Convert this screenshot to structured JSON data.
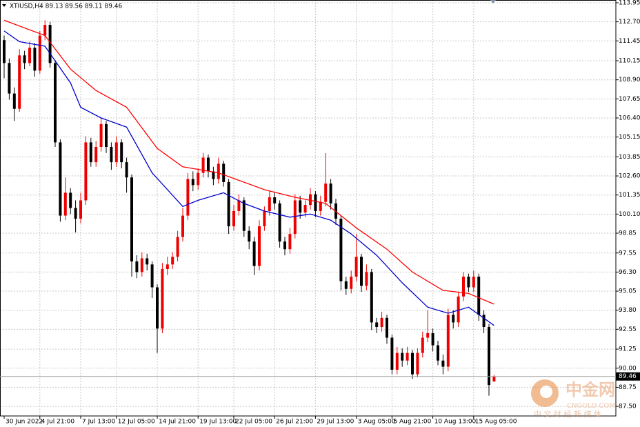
{
  "chart_data": {
    "type": "candlestick",
    "title": "XTIUSD,H4 89.13 89.56 89.11 89.46",
    "categories": [
      "30 Jun 2022",
      null,
      null,
      null,
      null,
      null,
      null,
      "4 Jul 21:00",
      null,
      null,
      null,
      null,
      null,
      null,
      null,
      "7 Jul 13:00",
      null,
      null,
      null,
      null,
      null,
      null,
      "12 Jul 05:00",
      null,
      null,
      null,
      null,
      null,
      null,
      null,
      "14 Jul 21:00",
      null,
      null,
      null,
      null,
      null,
      null,
      null,
      "19 Jul 13:00",
      null,
      null,
      null,
      null,
      null,
      null,
      "22 Jul 05:00",
      null,
      null,
      null,
      null,
      null,
      null,
      null,
      "26 Jul 21:00",
      null,
      null,
      null,
      null,
      null,
      null,
      null,
      "29 Jul 13:00",
      null,
      null,
      null,
      null,
      null,
      null,
      null,
      "3 Aug 05:00",
      null,
      null,
      null,
      null,
      null,
      null,
      "5 Aug 21:00",
      null,
      null,
      null,
      null,
      null,
      null,
      null,
      "10 Aug 13:00",
      null,
      null,
      null,
      null,
      null,
      null,
      null,
      "15 Aug 05:00",
      null,
      null,
      null,
      null
    ],
    "open": [
      111.5,
      110.0,
      108.0,
      107.0,
      110.5,
      110.0,
      111.0,
      109.5,
      111.8,
      112.5,
      110.0,
      104.8,
      100.0,
      101.5,
      100.5,
      99.8,
      101.0,
      104.8,
      103.5,
      104.5,
      106.0,
      104.5,
      103.5,
      104.8,
      103.5,
      102.5,
      97.0,
      96.3,
      97.2,
      96.8,
      95.3,
      92.6,
      96.5,
      96.8,
      97.3,
      98.6,
      100.0,
      102.4,
      102.0,
      102.8,
      103.8,
      102.9,
      102.4,
      103.4,
      102.2,
      99.3,
      100.3,
      101.0,
      99.0,
      98.3,
      96.7,
      99.3,
      100.3,
      101.2,
      100.8,
      98.3,
      97.8,
      98.8,
      101.0,
      100.2,
      100.7,
      101.4,
      100.3,
      100.9,
      102.1,
      100.8,
      99.8,
      95.7,
      95.2,
      96.0,
      97.3,
      95.4,
      96.3,
      93.0,
      92.7,
      93.3,
      92.0,
      89.9,
      91.0,
      90.5,
      91.0,
      89.6,
      91.0,
      92.0,
      92.3,
      91.5,
      90.5,
      90.1,
      93.5,
      93.0,
      94.7,
      96.0,
      95.3,
      96.0,
      93.5,
      92.7,
      89.13
    ],
    "high": [
      111.8,
      110.3,
      108.4,
      110.9,
      110.8,
      111.4,
      111.3,
      112.1,
      112.8,
      112.7,
      110.2,
      105.0,
      102.5,
      101.8,
      101.0,
      101.5,
      105.2,
      105.1,
      104.9,
      106.4,
      106.2,
      104.8,
      105.2,
      105.0,
      103.8,
      102.7,
      97.4,
      97.6,
      97.5,
      97.0,
      95.5,
      96.9,
      97.3,
      97.6,
      99.0,
      100.5,
      102.8,
      102.9,
      103.1,
      104.1,
      104.0,
      103.2,
      103.8,
      103.6,
      102.4,
      100.7,
      101.4,
      101.2,
      99.3,
      98.6,
      99.7,
      100.6,
      101.6,
      101.5,
      101.0,
      98.6,
      99.2,
      101.4,
      101.3,
      101.0,
      101.8,
      101.6,
      101.3,
      104.1,
      102.4,
      101.1,
      100.0,
      96.0,
      96.4,
      98.8,
      97.5,
      96.8,
      96.5,
      93.3,
      93.7,
      93.5,
      92.2,
      91.4,
      91.3,
      91.4,
      91.2,
      91.3,
      92.4,
      93.8,
      92.6,
      91.8,
      90.9,
      93.9,
      93.8,
      95.0,
      96.3,
      96.2,
      96.4,
      96.2,
      93.8,
      92.9,
      89.56
    ],
    "low": [
      109.0,
      107.6,
      106.2,
      106.8,
      109.6,
      109.8,
      109.1,
      109.3,
      111.5,
      109.7,
      104.5,
      99.6,
      99.7,
      100.1,
      98.9,
      99.5,
      100.7,
      103.2,
      103.2,
      104.2,
      104.1,
      103.0,
      103.2,
      103.1,
      101.5,
      96.0,
      95.9,
      96.0,
      96.4,
      94.6,
      91.0,
      92.3,
      96.1,
      96.5,
      97.0,
      98.3,
      99.7,
      101.6,
      101.7,
      102.5,
      102.5,
      102.0,
      102.1,
      101.9,
      98.8,
      99.0,
      100.0,
      98.6,
      97.8,
      96.1,
      96.4,
      99.0,
      100.0,
      100.4,
      97.9,
      97.4,
      97.5,
      98.5,
      99.8,
      99.9,
      100.4,
      99.9,
      100.0,
      100.6,
      100.4,
      99.4,
      95.1,
      94.8,
      94.9,
      95.7,
      95.0,
      95.1,
      92.5,
      92.3,
      92.4,
      91.6,
      89.6,
      89.6,
      90.1,
      90.2,
      89.3,
      89.4,
      90.7,
      91.7,
      91.1,
      90.2,
      89.6,
      89.8,
      92.6,
      92.7,
      94.4,
      95.0,
      95.0,
      93.1,
      92.3,
      88.2,
      89.11
    ],
    "close": [
      110.0,
      108.0,
      107.0,
      110.5,
      110.0,
      111.0,
      109.5,
      111.8,
      112.5,
      110.0,
      104.8,
      100.0,
      101.5,
      100.5,
      99.8,
      101.0,
      104.8,
      103.5,
      104.5,
      106.0,
      104.5,
      103.5,
      104.8,
      103.5,
      102.5,
      97.0,
      96.3,
      97.2,
      96.8,
      95.3,
      92.6,
      96.5,
      96.8,
      97.3,
      98.6,
      100.0,
      102.4,
      102.0,
      102.8,
      103.8,
      102.9,
      102.4,
      103.4,
      102.2,
      99.3,
      100.3,
      101.0,
      99.0,
      98.3,
      96.7,
      99.3,
      100.3,
      101.2,
      100.8,
      98.3,
      97.8,
      98.8,
      101.0,
      100.2,
      100.7,
      101.4,
      100.3,
      100.9,
      102.1,
      100.8,
      99.8,
      95.7,
      95.2,
      96.0,
      97.3,
      95.4,
      96.3,
      93.0,
      92.7,
      93.3,
      92.0,
      89.9,
      91.0,
      90.5,
      91.0,
      89.6,
      91.0,
      92.0,
      92.3,
      91.5,
      90.5,
      90.1,
      93.5,
      93.0,
      94.7,
      96.0,
      95.3,
      96.0,
      93.5,
      92.7,
      88.9,
      89.46
    ],
    "up_color": "#ee0000",
    "down_color": "#000000",
    "ma_lines": [
      {
        "color": "#ff0000",
        "x": [
          0,
          8,
          13,
          18,
          24,
          30,
          35,
          42,
          51,
          57,
          63,
          69,
          75,
          80,
          86,
          91,
          96
        ],
        "values": [
          112.8,
          111.8,
          109.6,
          108.2,
          107.1,
          104.4,
          103.2,
          102.8,
          101.7,
          101.2,
          100.8,
          99.2,
          97.8,
          96.3,
          95.1,
          94.9,
          94.2
        ]
      },
      {
        "color": "#0000cc",
        "x": [
          0,
          3,
          8,
          13,
          15,
          19,
          24,
          29,
          35,
          38,
          43,
          47,
          51,
          56,
          60,
          64,
          68,
          73,
          78,
          83,
          87,
          91,
          96
        ],
        "values": [
          112.1,
          111.4,
          111.1,
          108.7,
          107.1,
          106.4,
          105.8,
          102.8,
          100.6,
          101.0,
          101.5,
          100.8,
          100.3,
          99.9,
          100.1,
          99.7,
          98.8,
          97.4,
          95.6,
          94.0,
          93.6,
          94.0,
          92.8
        ]
      }
    ],
    "ylim": [
      86.87,
      114.13
    ],
    "yticks": [
      113.95,
      {
        "value": 112.7,
        "label": "112.70"
      },
      111.45,
      110.15,
      {
        "value": 108.9,
        "label": "108.90"
      },
      107.65,
      {
        "value": 106.4,
        "label": "106.40"
      },
      105.15,
      103.85,
      {
        "value": 102.6,
        "label": "102.60"
      },
      101.35,
      {
        "value": 100.1,
        "label": "100.10"
      },
      98.85,
      97.55,
      {
        "value": 96.3,
        "label": "96.30"
      },
      95.05,
      {
        "value": 93.8,
        "label": "93.80"
      },
      92.55,
      91.25,
      {
        "value": 90,
        "label": "90.00"
      },
      88.75,
      {
        "value": 87.5,
        "label": "87.50"
      }
    ],
    "grid": true,
    "current_price": 89.46,
    "watermark": {
      "brand": "中金网",
      "site": "CNGOLD.COM",
      "slogan": "中 文 财 经 新 媒 体"
    }
  }
}
